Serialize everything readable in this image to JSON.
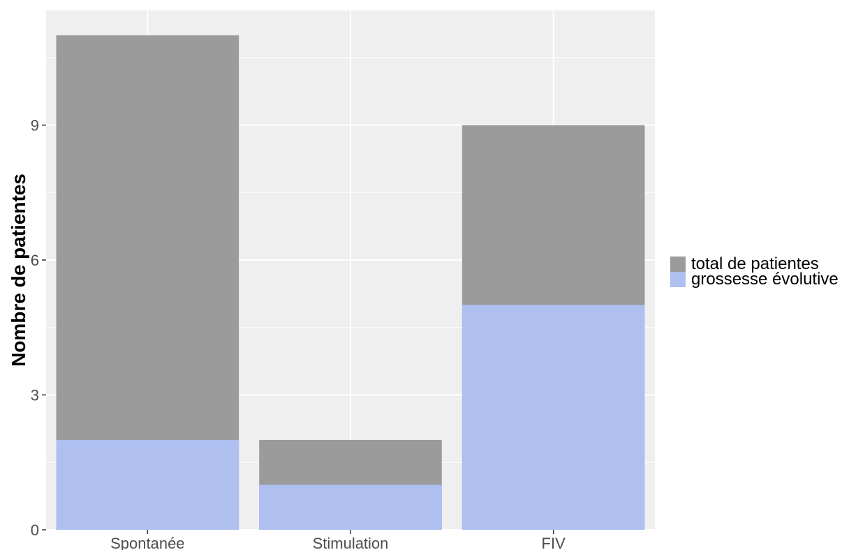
{
  "chart_data": {
    "type": "bar",
    "stacked": false,
    "overlay": true,
    "categories": [
      "Spontanée",
      "Stimulation",
      "FIV"
    ],
    "series": [
      {
        "name": "total de patientes",
        "color": "#9b9b9b",
        "values": [
          11,
          2,
          9
        ]
      },
      {
        "name": "grossesse évolutive",
        "color": "#aebff0",
        "values": [
          2,
          1,
          5
        ]
      }
    ],
    "xlabel": "",
    "ylabel": "Nombre de patientes",
    "ylim": [
      0,
      11.55
    ],
    "yticks": [
      0,
      3,
      6,
      9
    ],
    "grid": true,
    "panel_background": "#efefef",
    "gridline_color": "#ffffff",
    "legend_position": "right"
  }
}
